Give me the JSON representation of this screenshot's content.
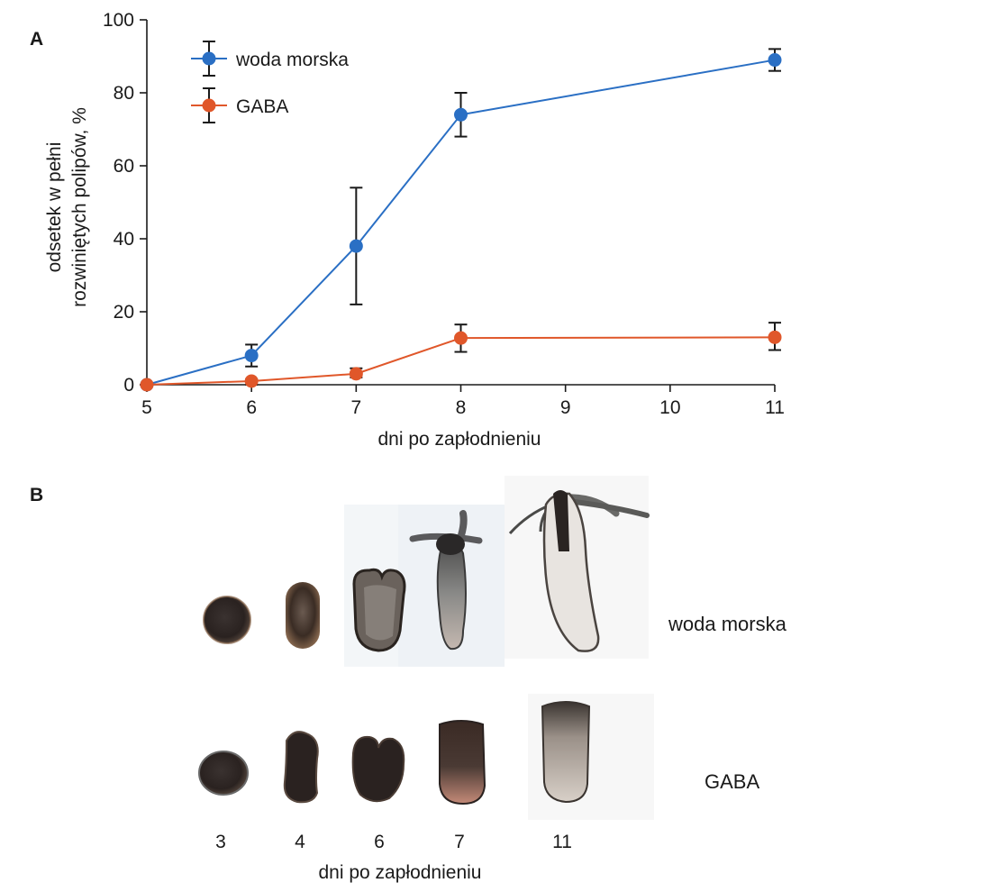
{
  "panel_a_label": "A",
  "panel_b_label": "B",
  "chart_data": {
    "type": "line",
    "xlabel": "dni po zapłodnieniu",
    "ylabel_lines": [
      "odsetek w pełni",
      "rozwiniętych polipów, %"
    ],
    "xlim": [
      5,
      11
    ],
    "ylim": [
      0,
      100
    ],
    "x_ticks": [
      5,
      6,
      7,
      8,
      9,
      10,
      11
    ],
    "y_ticks": [
      0,
      20,
      40,
      60,
      80,
      100
    ],
    "grid": false,
    "legend_position": "top-left",
    "series": [
      {
        "name": "woda morska",
        "color": "#2a6fc4",
        "x": [
          5,
          6,
          7,
          8,
          11
        ],
        "y": [
          0,
          8,
          38,
          74,
          89
        ],
        "err_low": [
          0,
          5,
          22,
          68,
          86
        ],
        "err_high": [
          0,
          11,
          54,
          80,
          92
        ]
      },
      {
        "name": "GABA",
        "color": "#e0572a",
        "x": [
          5,
          6,
          7,
          8,
          11
        ],
        "y": [
          0,
          1,
          3,
          12.8,
          13
        ],
        "err_low": [
          0,
          0,
          2,
          9,
          9.5
        ],
        "err_high": [
          0,
          1.5,
          4.5,
          16.5,
          17
        ]
      }
    ]
  },
  "panel_b": {
    "row_labels": [
      "woda morska",
      "GABA"
    ],
    "day_labels": [
      "3",
      "4",
      "6",
      "7",
      "11"
    ],
    "xlabel": "dni po zapłodnieniu"
  }
}
